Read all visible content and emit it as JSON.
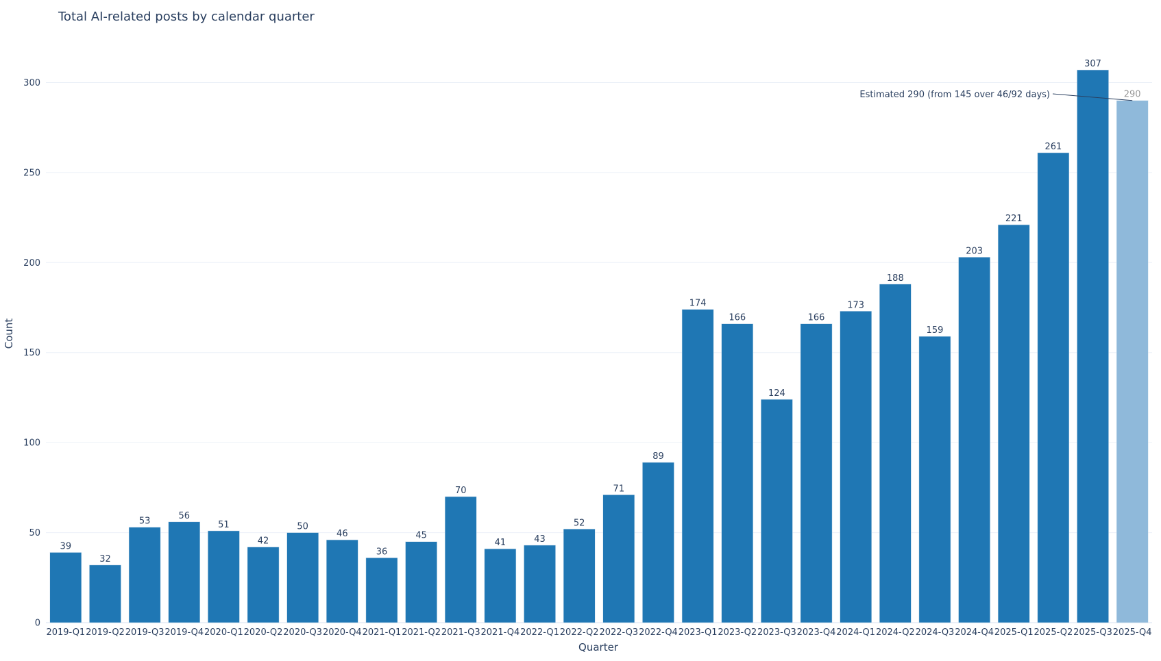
{
  "chart_data": {
    "type": "bar",
    "title": "Total AI-related posts by calendar quarter",
    "xlabel": "Quarter",
    "ylabel": "Count",
    "ylim": [
      0,
      323
    ],
    "yticks": [
      0,
      50,
      100,
      150,
      200,
      250,
      300
    ],
    "grid": true,
    "categories": [
      "2019-Q1",
      "2019-Q2",
      "2019-Q3",
      "2019-Q4",
      "2020-Q1",
      "2020-Q2",
      "2020-Q3",
      "2020-Q4",
      "2021-Q1",
      "2021-Q2",
      "2021-Q3",
      "2021-Q4",
      "2022-Q1",
      "2022-Q2",
      "2022-Q3",
      "2022-Q4",
      "2023-Q1",
      "2023-Q2",
      "2023-Q3",
      "2023-Q4",
      "2024-Q1",
      "2024-Q2",
      "2024-Q3",
      "2024-Q4",
      "2025-Q1",
      "2025-Q2",
      "2025-Q3",
      "2025-Q4"
    ],
    "values": [
      39,
      32,
      53,
      56,
      51,
      42,
      50,
      46,
      36,
      45,
      70,
      41,
      43,
      52,
      71,
      89,
      174,
      166,
      124,
      166,
      173,
      188,
      159,
      203,
      221,
      261,
      307,
      290
    ],
    "estimated": [
      false,
      false,
      false,
      false,
      false,
      false,
      false,
      false,
      false,
      false,
      false,
      false,
      false,
      false,
      false,
      false,
      false,
      false,
      false,
      false,
      false,
      false,
      false,
      false,
      false,
      false,
      false,
      true
    ],
    "colors": {
      "bar": "#1f77b4",
      "estimated_bar": "#8fb9da",
      "estimated_label": "#999999",
      "grid": "#ebf0f8"
    },
    "annotation": {
      "text": "Estimated 290 (from 145 over 46/92 days)",
      "category": "2025-Q4",
      "value": 290
    }
  }
}
